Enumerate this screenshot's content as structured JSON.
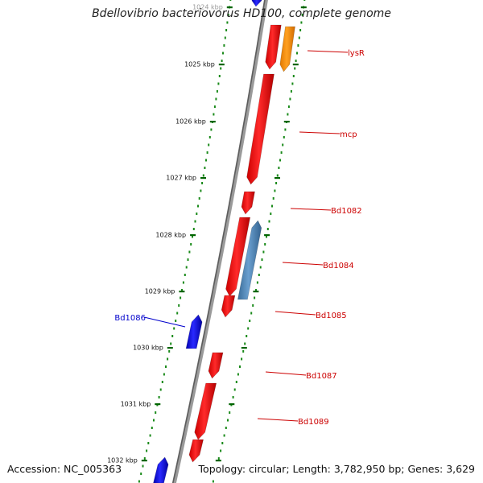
{
  "title": "Bdellovibrio bacteriovorus HD100, complete genome",
  "footer": {
    "accession_label": "Accession:",
    "accession": "NC_005363",
    "topology_label": "Topology:",
    "topology": "circular",
    "length_label": "Length:",
    "length": "3,782,950 bp",
    "genes_label": "Genes:",
    "genes": "3,629"
  },
  "scale_labels": [
    "1024 kbp",
    "1025 kbp",
    "1026 kbp",
    "1027 kbp",
    "1028 kbp",
    "1029 kbp",
    "1030 kbp",
    "1031 kbp",
    "1032 kbp"
  ],
  "gene_labels": [
    {
      "name": "lysR",
      "strand": "forward"
    },
    {
      "name": "mcp",
      "strand": "forward"
    },
    {
      "name": "Bd1082",
      "strand": "forward"
    },
    {
      "name": "Bd1084",
      "strand": "forward"
    },
    {
      "name": "Bd1085",
      "strand": "forward"
    },
    {
      "name": "Bd1086",
      "strand": "reverse"
    },
    {
      "name": "Bd1087",
      "strand": "forward"
    },
    {
      "name": "Bd1089",
      "strand": "forward"
    }
  ],
  "colors": {
    "backbone": "#888888",
    "forward_cds": "#ff0000",
    "reverse_cds": "#0000ff",
    "regulator": "#ff8c00",
    "feature_steelblue": "#4682b4",
    "forward_label": "#cc0000",
    "reverse_label": "#0000cc",
    "ticks": "#006400"
  }
}
